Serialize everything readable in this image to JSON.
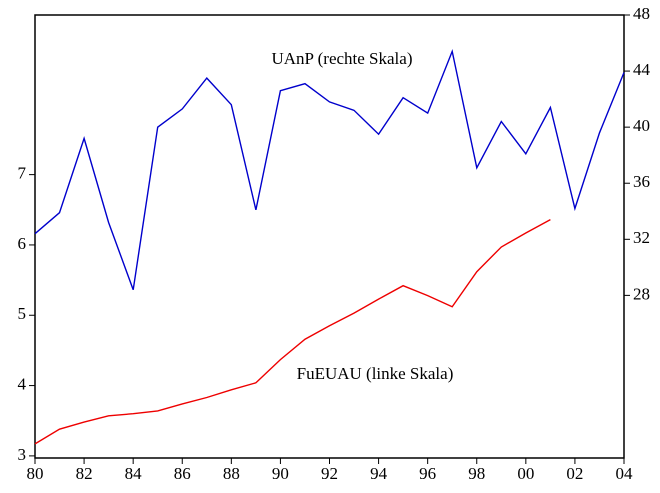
{
  "chart_data": {
    "type": "line",
    "x": [
      1980,
      1981,
      1982,
      1983,
      1984,
      1985,
      1986,
      1987,
      1988,
      1989,
      1990,
      1991,
      1992,
      1993,
      1994,
      1995,
      1996,
      1997,
      1998,
      1999,
      2000,
      2001,
      2002,
      2003,
      2004
    ],
    "xlim": [
      1980,
      2004
    ],
    "xticks": [
      {
        "value": 1980,
        "label": "80"
      },
      {
        "value": 1982,
        "label": "82"
      },
      {
        "value": 1984,
        "label": "84"
      },
      {
        "value": 1986,
        "label": "86"
      },
      {
        "value": 1988,
        "label": "88"
      },
      {
        "value": 1990,
        "label": "90"
      },
      {
        "value": 1992,
        "label": "92"
      },
      {
        "value": 1994,
        "label": "94"
      },
      {
        "value": 1996,
        "label": "96"
      },
      {
        "value": 1998,
        "label": "98"
      },
      {
        "value": 2000,
        "label": "00"
      },
      {
        "value": 2002,
        "label": "02"
      },
      {
        "value": 2004,
        "label": "04"
      }
    ],
    "ylim": [
      2.97,
      9.27
    ],
    "yticks": [
      3,
      4,
      5,
      6,
      7
    ],
    "y2lim": [
      16.4,
      48
    ],
    "y2ticks": [
      28,
      32,
      36,
      40,
      44,
      48
    ],
    "series": [
      {
        "name": "UAnP (rechte Skala)",
        "color": "#0000cc",
        "axis": "y2",
        "values": [
          32.4,
          33.9,
          39.2,
          33.2,
          28.4,
          40.0,
          41.3,
          43.5,
          41.6,
          34.1,
          42.6,
          43.1,
          41.8,
          41.2,
          39.5,
          42.1,
          41.0,
          45.4,
          37.1,
          40.4,
          38.1,
          41.4,
          34.2,
          39.6,
          43.9
        ]
      },
      {
        "name": "FuEUAU (linke Skala)",
        "color": "#ee0000",
        "values": [
          3.17,
          3.38,
          3.48,
          3.57,
          3.6,
          3.64,
          3.74,
          3.83,
          3.94,
          4.04,
          4.37,
          4.66,
          4.85,
          5.03,
          5.23,
          5.42,
          5.28,
          5.12,
          5.62,
          5.97,
          6.17,
          6.36,
          null,
          null,
          null
        ]
      }
    ]
  }
}
